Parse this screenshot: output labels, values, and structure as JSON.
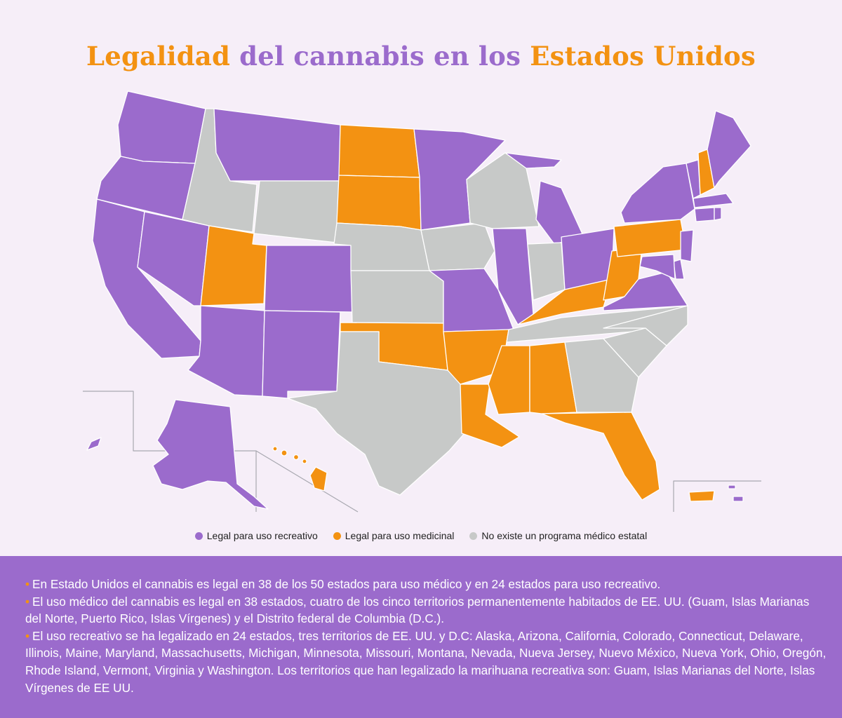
{
  "title": {
    "part1": "Legalidad",
    "part2": "del cannabis en los",
    "part3": "Estados Unidos"
  },
  "colors": {
    "recreational": "#9b6bcc",
    "medicinal": "#f39212",
    "none": "#c7c9c8",
    "background": "#f6eef8"
  },
  "legend": {
    "recreational": "Legal para uso recreativo",
    "medicinal": "Legal para uso medicinal",
    "none": "No existe un programa médico estatal"
  },
  "state_status": {
    "recreational": [
      "Alaska",
      "Arizona",
      "California",
      "Colorado",
      "Connecticut",
      "Delaware",
      "Illinois",
      "Maine",
      "Maryland",
      "Massachusetts",
      "Michigan",
      "Minnesota",
      "Missouri",
      "Montana",
      "Nevada",
      "New Jersey",
      "New Mexico",
      "New York",
      "Ohio",
      "Oregon",
      "Rhode Island",
      "Vermont",
      "Virginia",
      "Washington",
      "US Virgin Islands"
    ],
    "medicinal": [
      "North Dakota",
      "South Dakota",
      "Utah",
      "Oklahoma",
      "Arkansas",
      "Louisiana",
      "Mississippi",
      "Alabama",
      "Florida",
      "Kentucky",
      "West Virginia",
      "Pennsylvania",
      "New Hampshire",
      "Hawaii",
      "Puerto Rico"
    ],
    "none": [
      "Idaho",
      "Wyoming",
      "Nebraska",
      "Kansas",
      "Iowa",
      "Wisconsin",
      "Indiana",
      "Texas",
      "Tennessee",
      "North Carolina",
      "South Carolina",
      "Georgia"
    ]
  },
  "notes": [
    "En Estado Unidos el cannabis es legal en 38 de los 50 estados para uso médico y en 24 estados para uso recreativo.",
    "El uso médico del cannabis es legal en 38 estados, cuatro de los cinco territorios permanentemente habitados de EE. UU. (Guam, Islas Marianas del Norte, Puerto Rico, Islas Vírgenes) y el Distrito federal de Columbia (D.C.).",
    "El uso recreativo se ha legalizado en 24 estados, tres territorios de EE. UU. y D.C: Alaska, Arizona, California, Colorado, Connecticut, Delaware, Illinois, Maine, Maryland, Massachusetts, Michigan, Minnesota, Missouri, Montana, Nevada, Nueva Jersey, Nuevo México, Nueva York, Ohio, Oregón, Rhode Island, Vermont, Virginia y Washington. Los territorios que han legalizado la marihuana recreativa son: Guam, Islas Marianas del Norte, Islas Vírgenes de EE UU."
  ]
}
